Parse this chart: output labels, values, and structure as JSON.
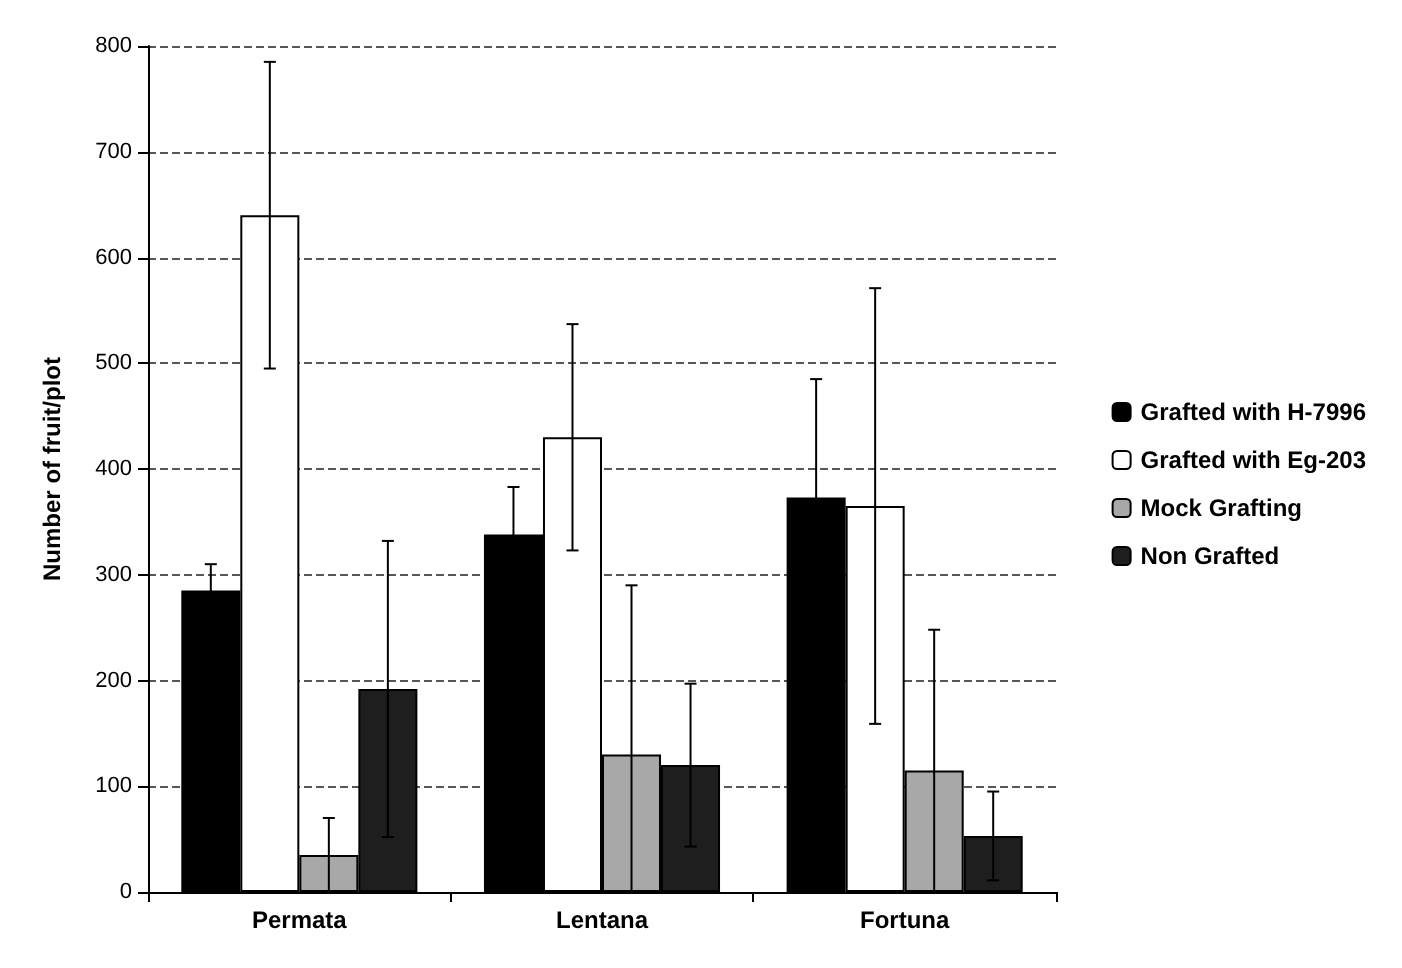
{
  "chart_data": {
    "type": "bar",
    "ylabel": "Number of fruit/plot",
    "categories": [
      "Permata",
      "Lentana",
      "Fortuna"
    ],
    "series": [
      {
        "name": "Grafted with H-7996",
        "color": "#000000",
        "values": [
          285,
          338,
          373
        ],
        "errors": [
          25,
          45,
          112
        ]
      },
      {
        "name": "Grafted with Eg-203",
        "color": "#ffffff",
        "values": [
          640,
          430,
          365
        ],
        "errors": [
          145,
          107,
          206
        ]
      },
      {
        "name": "Mock Grafting",
        "color": "#a8a8a8",
        "values": [
          35,
          130,
          115
        ],
        "errors": [
          35,
          [
            0,
            290
          ],
          [
            0,
            248
          ]
        ]
      },
      {
        "name": "Non Grafted",
        "color": "#1e1e1e",
        "values": [
          192,
          120,
          53
        ],
        "errors": [
          140,
          77,
          42
        ]
      }
    ],
    "ylim": [
      0,
      800
    ],
    "yticks": [
      0,
      100,
      200,
      300,
      400,
      500,
      600,
      700,
      800
    ],
    "grid": "y",
    "legend": "right"
  }
}
